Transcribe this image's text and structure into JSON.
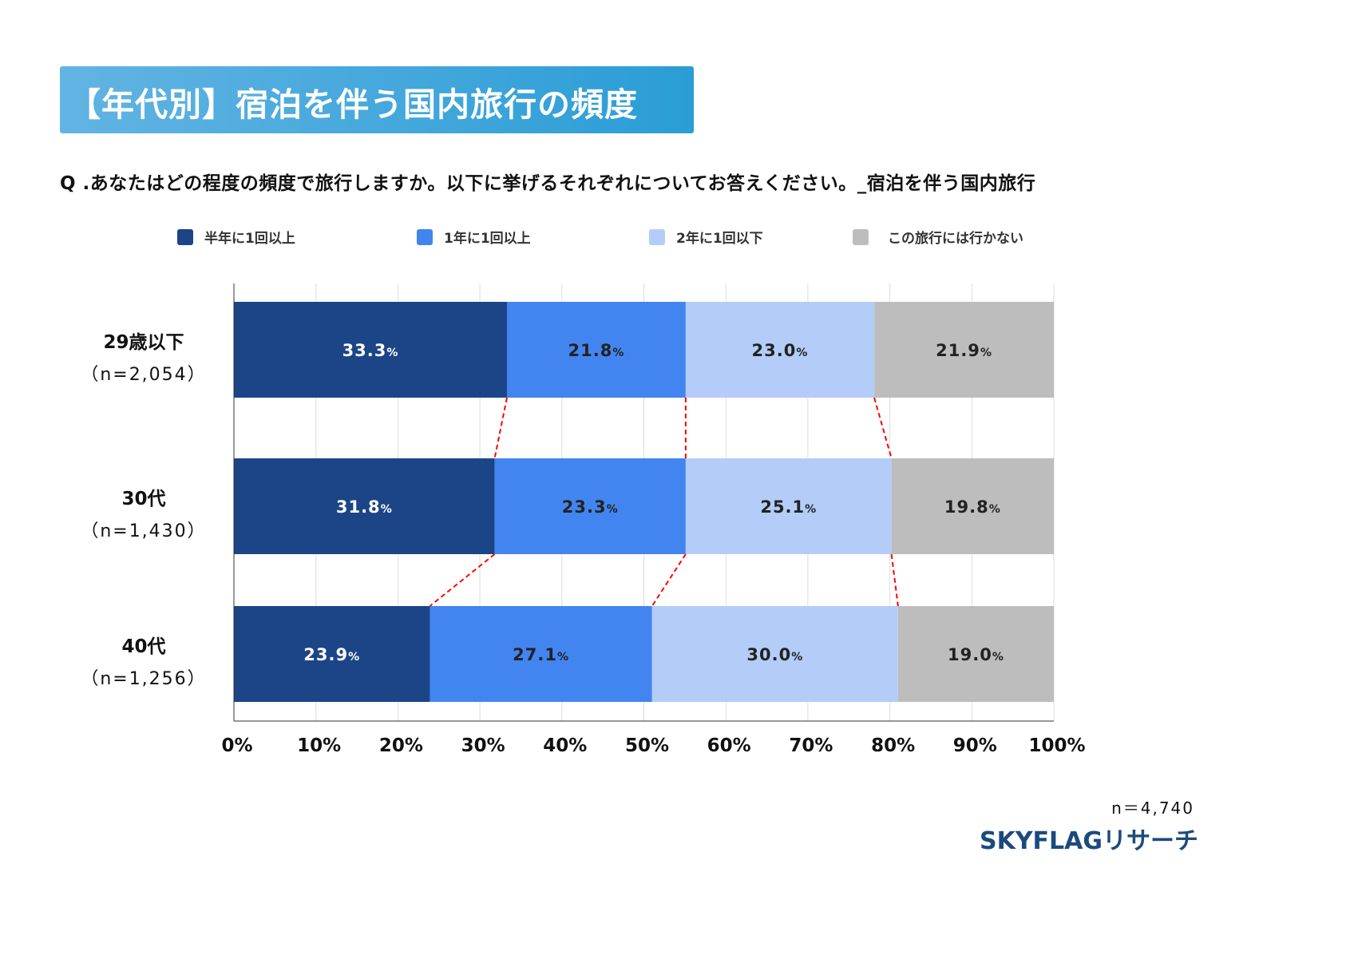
{
  "title": "【年代別】宿泊を伴う国内旅行の頻度",
  "question": "Q .あなたはどの程度の頻度で旅行しますか。以下に挙げるそれぞれについてお答えください。_宿泊を伴う国内旅行",
  "footer": {
    "n": "n＝4,740",
    "logo": "SKYFLAGリサーチ"
  },
  "chart_data": {
    "type": "bar",
    "orientation": "horizontal",
    "stacked": true,
    "percent_stacked": true,
    "categories": [
      {
        "label": "29歳以下",
        "sub": "（n=2,054）"
      },
      {
        "label": "30代",
        "sub": "（n=1,430）"
      },
      {
        "label": "40代",
        "sub": "（n=1,256）"
      }
    ],
    "series": [
      {
        "name": "半年に1回以上",
        "color": "#1b4587",
        "label_color": "#ffffff",
        "values": [
          33.3,
          31.8,
          23.9
        ]
      },
      {
        "name": "1年に1回以上",
        "color": "#4285f0",
        "label_color": "#222222",
        "values": [
          21.8,
          23.3,
          27.1
        ]
      },
      {
        "name": "2年に1回以下",
        "color": "#b3cdf8",
        "label_color": "#222222",
        "values": [
          23.0,
          25.1,
          30.0
        ]
      },
      {
        "name": "この旅行には行かない",
        "color": "#bdbdbd",
        "label_color": "#222222",
        "values": [
          21.9,
          19.8,
          19.0
        ]
      }
    ],
    "value_suffix": "%",
    "xlim": [
      0,
      100
    ],
    "xticks": [
      "0%",
      "10%",
      "20%",
      "30%",
      "40%",
      "50%",
      "60%",
      "70%",
      "80%",
      "90%",
      "100%"
    ],
    "grid": true,
    "legend": "top",
    "connector_color": "#ff0000"
  }
}
